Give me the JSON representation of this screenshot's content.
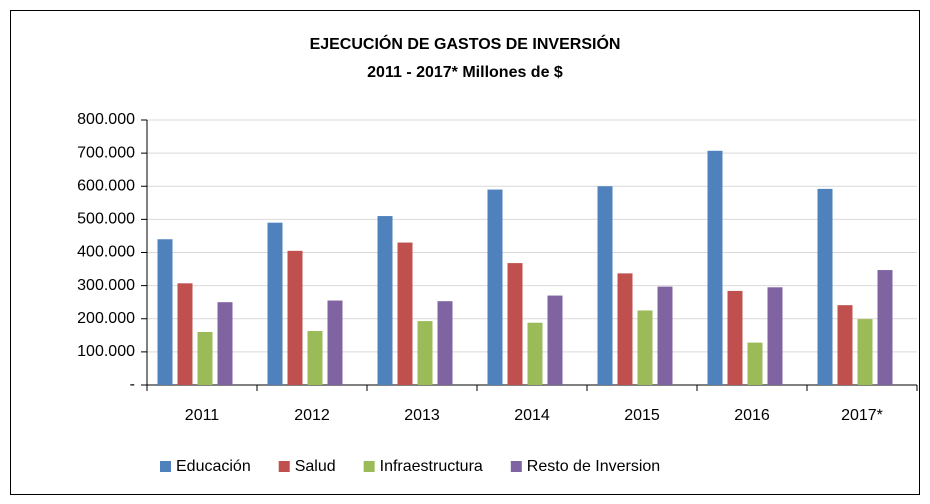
{
  "chart_data": {
    "type": "bar",
    "title": "EJECUCIÓN DE GASTOS DE INVERSIÓN",
    "subtitle": "2011 - 2017* Millones de $",
    "categories": [
      "2011",
      "2012",
      "2013",
      "2014",
      "2015",
      "2016",
      "2017*"
    ],
    "series": [
      {
        "name": "Educación",
        "color": "#4f81bd",
        "values": [
          440000,
          490000,
          510000,
          590000,
          600000,
          707000,
          592000
        ]
      },
      {
        "name": "Salud",
        "color": "#c0504d",
        "values": [
          307000,
          405000,
          430000,
          368000,
          337000,
          284000,
          241000
        ]
      },
      {
        "name": "Infraestructura",
        "color": "#9bbb59",
        "values": [
          160000,
          163000,
          193000,
          188000,
          225000,
          128000,
          199000
        ]
      },
      {
        "name": "Resto de Inversion",
        "color": "#8064a2",
        "values": [
          250000,
          255000,
          253000,
          270000,
          297000,
          295000,
          347000
        ]
      }
    ],
    "ylim": [
      0,
      800000
    ],
    "yticks": [
      {
        "value": 0,
        "label": "-"
      },
      {
        "value": 100000,
        "label": "100.000"
      },
      {
        "value": 200000,
        "label": "200.000"
      },
      {
        "value": 300000,
        "label": "300.000"
      },
      {
        "value": 400000,
        "label": "400.000"
      },
      {
        "value": 500000,
        "label": "500.000"
      },
      {
        "value": 600000,
        "label": "600.000"
      },
      {
        "value": 700000,
        "label": "700.000"
      },
      {
        "value": 800000,
        "label": "800.000"
      }
    ],
    "grid": true,
    "legend": "bottom"
  }
}
